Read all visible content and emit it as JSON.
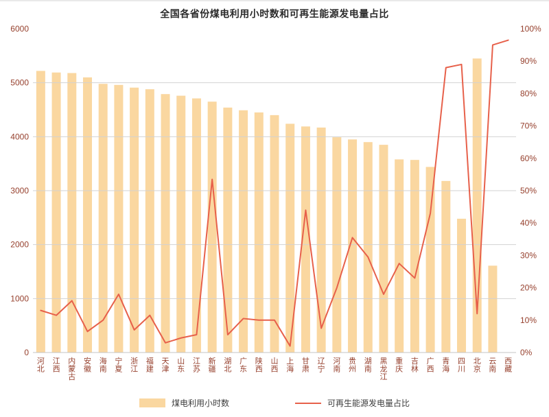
{
  "chart_data": {
    "type": "bar",
    "title": "全国各省份煤电利用小时数和可再生能源发电量占比",
    "categories": [
      "河北",
      "江西",
      "内蒙古",
      "安徽",
      "海南",
      "宁夏",
      "浙江",
      "福建",
      "天津",
      "山东",
      "江苏",
      "新疆",
      "湖北",
      "广东",
      "陕西",
      "山西",
      "上海",
      "甘肃",
      "辽宁",
      "河南",
      "贵州",
      "湖南",
      "黑龙江",
      "重庆",
      "吉林",
      "广西",
      "青海",
      "四川",
      "北京",
      "云南",
      "西藏"
    ],
    "series": [
      {
        "name": "煤电利用小时数",
        "type": "bar",
        "yaxis": "left",
        "values": [
          5220,
          5190,
          5180,
          5100,
          4980,
          4960,
          4910,
          4880,
          4790,
          4760,
          4710,
          4650,
          4540,
          4490,
          4450,
          4400,
          4240,
          4190,
          4170,
          3990,
          3950,
          3900,
          3850,
          3580,
          3570,
          3440,
          3180,
          2480,
          5450,
          1610,
          0
        ]
      },
      {
        "name": "可再生能源发电量占比",
        "type": "line",
        "yaxis": "right",
        "unit": "%",
        "values": [
          13,
          11.5,
          16,
          6.5,
          10,
          18,
          7,
          11.5,
          3,
          4.5,
          5.5,
          53.5,
          5.5,
          10.5,
          10,
          10,
          2,
          44,
          7.5,
          20,
          35.5,
          29.5,
          18,
          27.5,
          23,
          43,
          88,
          89,
          12,
          95,
          96.5
        ]
      }
    ],
    "y_left": {
      "min": 0,
      "max": 6000,
      "ticks": [
        0,
        1000,
        2000,
        3000,
        4000,
        5000,
        6000
      ]
    },
    "y_right": {
      "min": 0,
      "max": 100,
      "ticks": [
        0,
        10,
        20,
        30,
        40,
        50,
        60,
        70,
        80,
        90,
        100
      ],
      "format": "percent"
    },
    "legend_position": "bottom",
    "grid": true
  },
  "colors": {
    "bar": "#fad7a0",
    "line": "#e7604a",
    "axis_label": "#96402d",
    "grid": "#d2d2d2",
    "axis_line": "#c4c4c4",
    "title": "#2b2b2b",
    "legend_text": "#3c3c3c"
  }
}
